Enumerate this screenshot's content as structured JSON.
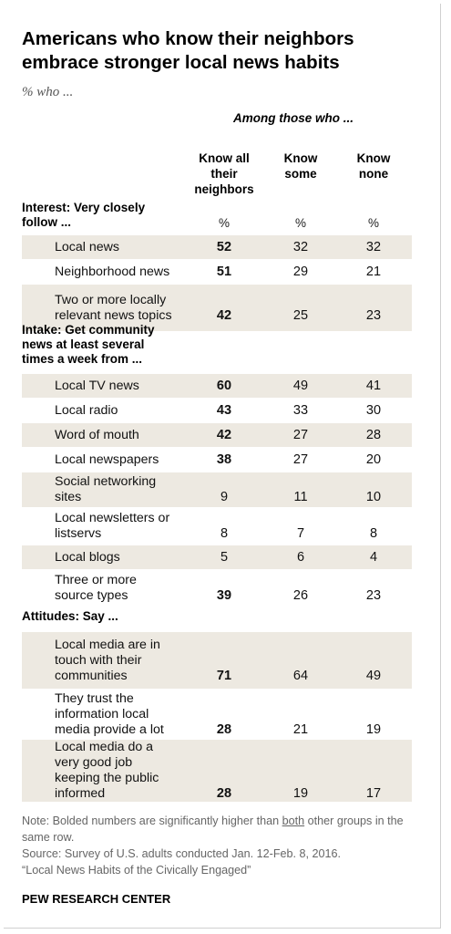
{
  "title": "Americans who know their neighbors embrace stronger local news habits",
  "subtitle": "% who ...",
  "group_header": "Among those who ...",
  "columns": [
    "Know all\ntheir\nneighbors",
    "Know\nsome",
    "Know\nnone"
  ],
  "unit_label": "%",
  "sections": [
    {
      "heading": "Interest: Very closely\nfollow ...",
      "rows": [
        {
          "label": "Local news",
          "values": [
            52,
            32,
            32
          ],
          "bold": [
            true,
            false,
            false
          ],
          "shaded": true
        },
        {
          "label": "Neighborhood news",
          "values": [
            51,
            29,
            21
          ],
          "bold": [
            true,
            false,
            false
          ],
          "shaded": false
        },
        {
          "label": "Two or more locally\nrelevant news topics",
          "values": [
            42,
            25,
            23
          ],
          "bold": [
            true,
            false,
            false
          ],
          "shaded": true
        }
      ]
    },
    {
      "heading": "Intake: Get community\nnews at least several\ntimes a week from ...",
      "rows": [
        {
          "label": "Local TV news",
          "values": [
            60,
            49,
            41
          ],
          "bold": [
            true,
            false,
            false
          ],
          "shaded": true
        },
        {
          "label": "Local radio",
          "values": [
            43,
            33,
            30
          ],
          "bold": [
            true,
            false,
            false
          ],
          "shaded": false
        },
        {
          "label": "Word of mouth",
          "values": [
            42,
            27,
            28
          ],
          "bold": [
            true,
            false,
            false
          ],
          "shaded": true
        },
        {
          "label": "Local newspapers",
          "values": [
            38,
            27,
            20
          ],
          "bold": [
            true,
            false,
            false
          ],
          "shaded": false
        },
        {
          "label": "Social networking\nsites",
          "values": [
            9,
            11,
            10
          ],
          "bold": [
            false,
            false,
            false
          ],
          "shaded": true
        },
        {
          "label": "Local newsletters or\nlistservs",
          "values": [
            8,
            7,
            8
          ],
          "bold": [
            false,
            false,
            false
          ],
          "shaded": false
        },
        {
          "label": "Local blogs",
          "values": [
            5,
            6,
            4
          ],
          "bold": [
            false,
            false,
            false
          ],
          "shaded": true
        },
        {
          "label": "Three or more\nsource types",
          "values": [
            39,
            26,
            23
          ],
          "bold": [
            true,
            false,
            false
          ],
          "shaded": false
        }
      ]
    },
    {
      "heading": "Attitudes: Say ...",
      "rows": [
        {
          "label": "Local media are in\ntouch with their\ncommunities",
          "values": [
            71,
            64,
            49
          ],
          "bold": [
            true,
            false,
            false
          ],
          "shaded": true
        },
        {
          "label": "They trust the\ninformation local\nmedia provide a lot",
          "values": [
            28,
            21,
            19
          ],
          "bold": [
            true,
            false,
            false
          ],
          "shaded": false
        },
        {
          "label": "Local media do a\nvery good job\nkeeping the public\ninformed",
          "values": [
            28,
            19,
            17
          ],
          "bold": [
            true,
            false,
            false
          ],
          "shaded": true
        }
      ]
    }
  ],
  "note": {
    "prefix": "Note: Bolded numbers are significantly higher than ",
    "emphasis": "both",
    "suffix": " other groups in the same row."
  },
  "source": "Source: Survey of U.S. adults conducted Jan. 12-Feb. 8, 2016.",
  "report": "“Local News Habits of the Civically Engaged”",
  "brand": "PEW RESEARCH CENTER",
  "colors": {
    "row_shade": "#ede9e1",
    "text": "#111111",
    "note_text": "#666666"
  },
  "chart_data": {
    "type": "table",
    "title": "Americans who know their neighbors embrace stronger local news habits",
    "subtitle": "% who ...",
    "categories": [
      "Know all their neighbors",
      "Know some",
      "Know none"
    ],
    "series": [
      {
        "name": "Local news",
        "values": [
          52,
          32,
          32
        ]
      },
      {
        "name": "Neighborhood news",
        "values": [
          51,
          29,
          21
        ]
      },
      {
        "name": "Two or more locally relevant news topics",
        "values": [
          42,
          25,
          23
        ]
      },
      {
        "name": "Local TV news",
        "values": [
          60,
          49,
          41
        ]
      },
      {
        "name": "Local radio",
        "values": [
          43,
          33,
          30
        ]
      },
      {
        "name": "Word of mouth",
        "values": [
          42,
          27,
          28
        ]
      },
      {
        "name": "Local newspapers",
        "values": [
          38,
          27,
          20
        ]
      },
      {
        "name": "Social networking sites",
        "values": [
          9,
          11,
          10
        ]
      },
      {
        "name": "Local newsletters or listservs",
        "values": [
          8,
          7,
          8
        ]
      },
      {
        "name": "Local blogs",
        "values": [
          5,
          6,
          4
        ]
      },
      {
        "name": "Three or more source types",
        "values": [
          39,
          26,
          23
        ]
      },
      {
        "name": "Local media are in touch with their communities",
        "values": [
          71,
          64,
          49
        ]
      },
      {
        "name": "They trust the information local media provide a lot",
        "values": [
          28,
          21,
          19
        ]
      },
      {
        "name": "Local media do a very good job keeping the public informed",
        "values": [
          28,
          19,
          17
        ]
      }
    ]
  }
}
